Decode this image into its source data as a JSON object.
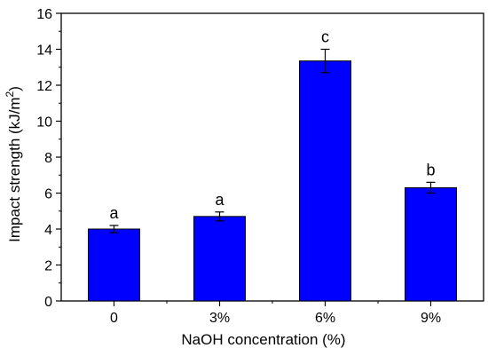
{
  "chart_data": {
    "type": "bar",
    "title": "",
    "xlabel": "NaOH concentration (%)",
    "ylabel": "Impact strength (kJ/m",
    "ylabel_superscript": "2",
    "ylabel_suffix": ")",
    "categories": [
      "0",
      "3%",
      "6%",
      "9%"
    ],
    "values": [
      4.0,
      4.7,
      13.35,
      6.3
    ],
    "errors": [
      0.2,
      0.25,
      0.65,
      0.3
    ],
    "significance": [
      "a",
      "a",
      "c",
      "b"
    ],
    "ylim": [
      0,
      16
    ],
    "yticks": [
      "0",
      "2",
      "4",
      "6",
      "8",
      "10",
      "12",
      "14",
      "16"
    ],
    "bar_color": "#0000ff",
    "grid": false,
    "legend": "none"
  }
}
